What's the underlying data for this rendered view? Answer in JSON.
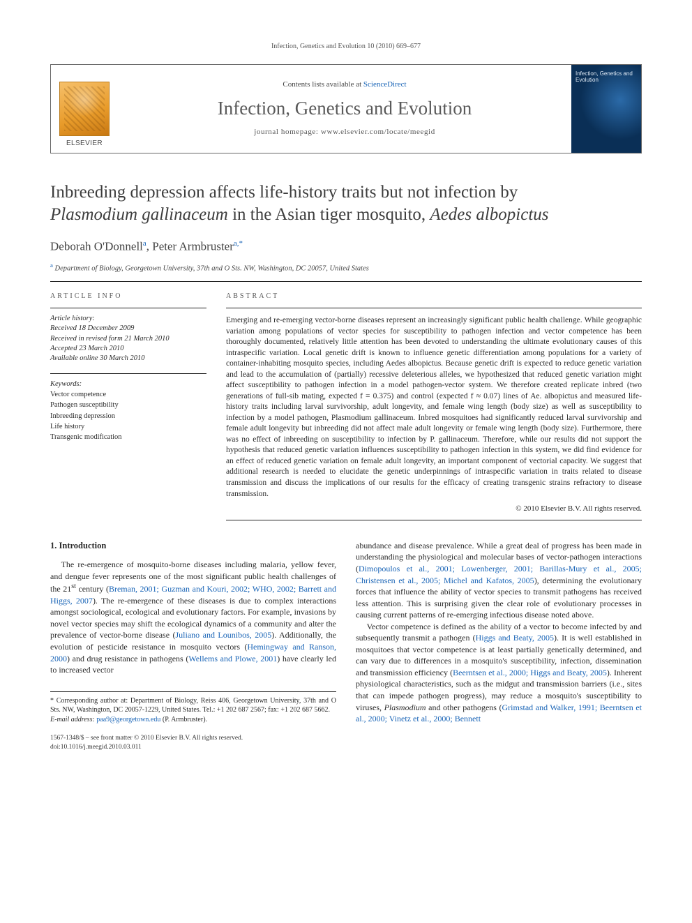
{
  "running_header": "Infection, Genetics and Evolution 10 (2010) 669–677",
  "masthead": {
    "contents_prefix": "Contents lists available at ",
    "contents_link": "ScienceDirect",
    "journal": "Infection, Genetics and Evolution",
    "homepage_prefix": "journal homepage: ",
    "homepage": "www.elsevier.com/locate/meegid",
    "publisher_logo_label": "ELSEVIER",
    "cover_caption": "Infection, Genetics and Evolution"
  },
  "article": {
    "title_line1": "Inbreeding depression affects life-history traits but not infection by",
    "title_line2_italic": "Plasmodium gallinaceum",
    "title_line2_rest": " in the Asian tiger mosquito, ",
    "title_line2_italic2": "Aedes albopictus",
    "authors": [
      {
        "name": "Deborah O'Donnell",
        "affref": "a"
      },
      {
        "name": "Peter Armbruster",
        "affref": "a",
        "corresponding": true
      }
    ],
    "affiliation_marker": "a",
    "affiliation": "Department of Biology, Georgetown University, 37th and O Sts. NW, Washington, DC 20057, United States"
  },
  "info": {
    "label": "ARTICLE INFO",
    "history_label": "Article history:",
    "history": [
      "Received 18 December 2009",
      "Received in revised form 21 March 2010",
      "Accepted 23 March 2010",
      "Available online 30 March 2010"
    ],
    "keywords_label": "Keywords:",
    "keywords": [
      "Vector competence",
      "Pathogen susceptibility",
      "Inbreeding depression",
      "Life history",
      "Transgenic modification"
    ]
  },
  "abstract": {
    "label": "ABSTRACT",
    "text": "Emerging and re-emerging vector-borne diseases represent an increasingly significant public health challenge. While geographic variation among populations of vector species for susceptibility to pathogen infection and vector competence has been thoroughly documented, relatively little attention has been devoted to understanding the ultimate evolutionary causes of this intraspecific variation. Local genetic drift is known to influence genetic differentiation among populations for a variety of container-inhabiting mosquito species, including Aedes albopictus. Because genetic drift is expected to reduce genetic variation and lead to the accumulation of (partially) recessive deleterious alleles, we hypothesized that reduced genetic variation might affect susceptibility to pathogen infection in a model pathogen-vector system. We therefore created replicate inbred (two generations of full-sib mating, expected f = 0.375) and control (expected f ≈ 0.07) lines of Ae. albopictus and measured life-history traits including larval survivorship, adult longevity, and female wing length (body size) as well as susceptibility to infection by a model pathogen, Plasmodium gallinaceum. Inbred mosquitoes had significantly reduced larval survivorship and female adult longevity but inbreeding did not affect male adult longevity or female wing length (body size). Furthermore, there was no effect of inbreeding on susceptibility to infection by P. gallinaceum. Therefore, while our results did not support the hypothesis that reduced genetic variation influences susceptibility to pathogen infection in this system, we did find evidence for an effect of reduced genetic variation on female adult longevity, an important component of vectorial capacity. We suggest that additional research is needed to elucidate the genetic underpinnings of intraspecific variation in traits related to disease transmission and discuss the implications of our results for the efficacy of creating transgenic strains refractory to disease transmission.",
    "copyright": "© 2010 Elsevier B.V. All rights reserved."
  },
  "introduction": {
    "heading": "1. Introduction",
    "col1_html": "The re-emergence of mosquito-borne diseases including malaria, yellow fever, and dengue fever represents one of the most significant public health challenges of the 21<sup>st</sup> century (<a class='cit' href='#'>Breman, 2001; Guzman and Kouri, 2002; WHO, 2002; Barrett and Higgs, 2007</a>). The re-emergence of these diseases is due to complex interactions amongst sociological, ecological and evolutionary factors. For example, invasions by novel vector species may shift the ecological dynamics of a community and alter the prevalence of vector-borne disease (<a class='cit' href='#'>Juliano and Lounibos, 2005</a>). Additionally, the evolution of pesticide resistance in mosquito vectors (<a class='cit' href='#'>Hemingway and Ranson, 2000</a>) and drug resistance in pathogens (<a class='cit' href='#'>Wellems and Plowe, 2001</a>) have clearly led to increased vector",
    "col2_p1_html": "abundance and disease prevalence. While a great deal of progress has been made in understanding the physiological and molecular bases of vector-pathogen interactions (<a class='cit' href='#'>Dimopoulos et al., 2001; Lowenberger, 2001; Barillas-Mury et al., 2005; Christensen et al., 2005; Michel and Kafatos, 2005</a>), determining the evolutionary forces that influence the ability of vector species to transmit pathogens has received less attention. This is surprising given the clear role of evolutionary processes in causing current patterns of re-emerging infectious disease noted above.",
    "col2_p2_html": "Vector competence is defined as the ability of a vector to become infected by and subsequently transmit a pathogen (<a class='cit' href='#'>Higgs and Beaty, 2005</a>). It is well established in mosquitoes that vector competence is at least partially genetically determined, and can vary due to differences in a mosquito's susceptibility, infection, dissemination and transmission efficiency (<a class='cit' href='#'>Beerntsen et al., 2000; Higgs and Beaty, 2005</a>). Inherent physiological characteristics, such as the midgut and transmission barriers (i.e., sites that can impede pathogen progress), may reduce a mosquito's susceptibility to viruses, <i>Plasmodium</i> and other pathogens (<a class='cit' href='#'>Grimstad and Walker, 1991; Beerntsen et al., 2000; Vinetz et al., 2000; Bennett</a>"
  },
  "footnote": {
    "corresponding": "* Corresponding author at: Department of Biology, Reiss 406, Georgetown University, 37th and O Sts. NW, Washington, DC 20057-1229, United States. Tel.: +1 202 687 2567; fax: +1 202 687 5662.",
    "email_label": "E-mail address:",
    "email": "paa9@georgetown.edu",
    "email_who": "(P. Armbruster)."
  },
  "footer": {
    "line1": "1567-1348/$ – see front matter © 2010 Elsevier B.V. All rights reserved.",
    "line2": "doi:10.1016/j.meegid.2010.03.011"
  },
  "colors": {
    "link": "#1763b6",
    "text": "#2a2a2a",
    "rule": "#222222",
    "cover_bg": "#0a2f56"
  }
}
